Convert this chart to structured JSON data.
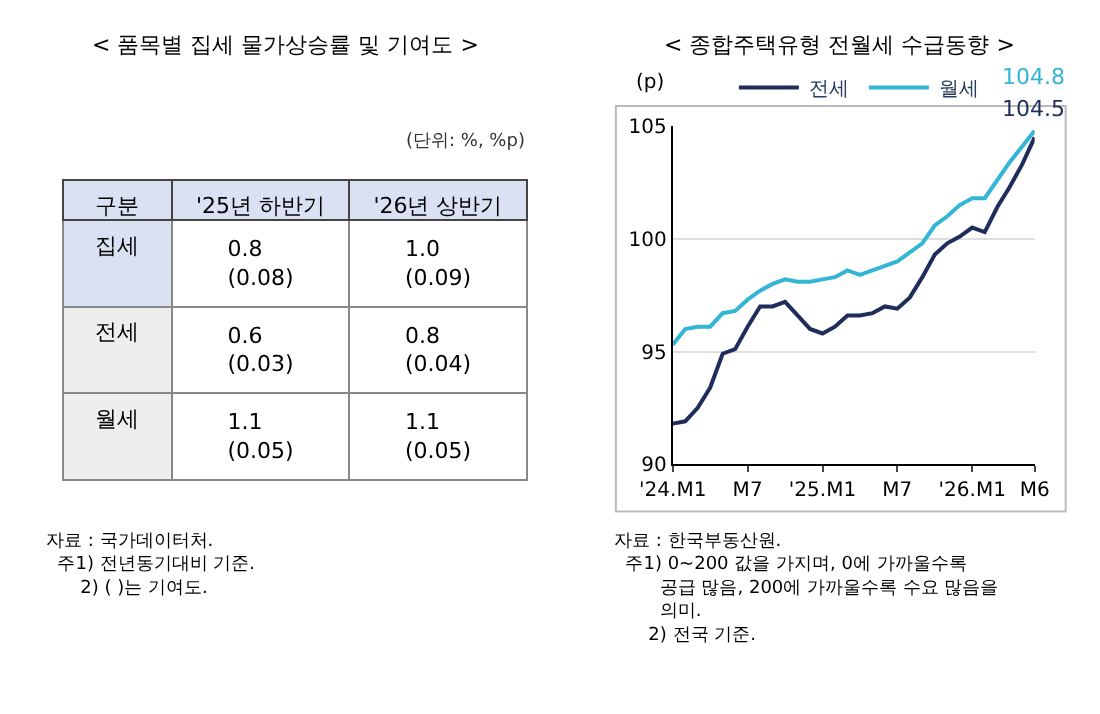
{
  "chart_data": [
    {
      "type": "other",
      "title": "< 품목별 집세 물가상승률 및 기여도 >",
      "subtitle": "(단위: %, %p)",
      "categories": [
        "구분",
        "'25년 하반기",
        "'26년 상반기"
      ],
      "y_categories": [
        "집세",
        "전세",
        "월세"
      ],
      "cell_labels": [
        [
          "0.8\n(0.08)",
          "1.0\n(0.09)"
        ],
        [
          "0.6\n(0.03)",
          "0.8\n(0.04)"
        ],
        [
          "1.1\n(0.05)",
          "1.1\n(0.05)"
        ]
      ],
      "annotations": [
        "자료 : 국가데이터처.",
        "주1) 전년동기대비 기준.",
        "2) ( )는 기여도."
      ]
    },
    {
      "type": "line",
      "title": "< 종합주택유형 전월세 수급동향 >",
      "ylabel": "(p)",
      "categories": [
        "'24.M1",
        null,
        null,
        null,
        null,
        null,
        "M7",
        null,
        null,
        null,
        null,
        null,
        "'25.M1",
        null,
        null,
        null,
        null,
        null,
        "M7",
        null,
        null,
        null,
        null,
        null,
        "'26.M1",
        null,
        null,
        null,
        null,
        "M6"
      ],
      "series": [
        {
          "name": "전세",
          "color": "#1f2d5c",
          "values": [
            91.8,
            91.9,
            92.5,
            93.4,
            94.9,
            95.1,
            96.1,
            97.0,
            97.0,
            97.2,
            96.6,
            96.0,
            95.8,
            96.1,
            96.6,
            96.6,
            96.7,
            97.0,
            96.9,
            97.4,
            98.3,
            99.3,
            99.8,
            100.1,
            100.5,
            100.3,
            101.4,
            102.3,
            103.3,
            104.5
          ],
          "value_labels": [
            null,
            null,
            null,
            null,
            null,
            null,
            null,
            null,
            null,
            null,
            null,
            null,
            null,
            null,
            null,
            null,
            null,
            null,
            null,
            null,
            null,
            null,
            null,
            null,
            null,
            null,
            null,
            null,
            null,
            "104.5"
          ]
        },
        {
          "name": "월세",
          "color": "#33b5d6",
          "values": [
            95.3,
            96.0,
            96.1,
            96.1,
            96.7,
            96.8,
            97.3,
            97.7,
            98.0,
            98.2,
            98.1,
            98.1,
            98.2,
            98.3,
            98.6,
            98.4,
            98.6,
            98.8,
            99.0,
            99.4,
            99.8,
            100.6,
            101.0,
            101.5,
            101.8,
            101.8,
            102.6,
            103.4,
            104.1,
            104.8
          ],
          "value_labels": [
            null,
            null,
            null,
            null,
            null,
            null,
            null,
            null,
            null,
            null,
            null,
            null,
            null,
            null,
            null,
            null,
            null,
            null,
            null,
            null,
            null,
            null,
            null,
            null,
            null,
            null,
            null,
            null,
            null,
            "104.8"
          ]
        }
      ],
      "ylim": [
        90,
        105
      ],
      "yticks": [
        90,
        95,
        100,
        105
      ],
      "grid": "y",
      "legend": "top",
      "marker": "none",
      "line_style": "solid",
      "annotations": [
        "자료 : 한국부동산원.",
        "주1) 0~200 값을 가지며, 0에 가까울수록 공급 많음, 200에 가까울수록 수요 많음을 의미.",
        "2) 전국 기준."
      ]
    }
  ]
}
